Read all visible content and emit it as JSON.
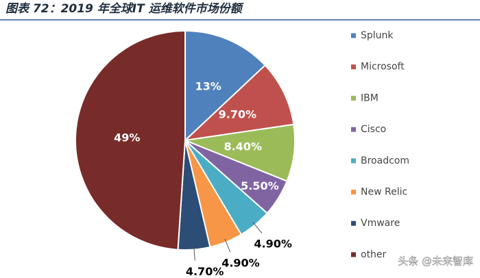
{
  "chart_data": {
    "type": "pie",
    "title": "图表 72：2019 年全球IT 运维软件市场份额",
    "categories": [
      "Splunk",
      "Microsoft",
      "IBM",
      "Cisco",
      "Broadcom",
      "New Relic",
      "Vmware",
      "other"
    ],
    "values": [
      13,
      9.7,
      8.4,
      5.5,
      4.9,
      4.9,
      4.7,
      49
    ],
    "value_labels": [
      "13%",
      "9.70%",
      "8.40%",
      "5.50%",
      "4.90%",
      "4.90%",
      "4.70%",
      "49%"
    ],
    "colors": [
      "#4f81bd",
      "#c0504d",
      "#9bbb59",
      "#8064a2",
      "#4bacc6",
      "#f79646",
      "#2c4d75",
      "#772c2a"
    ],
    "legend": "right"
  },
  "watermark": "头条 @未来智库"
}
